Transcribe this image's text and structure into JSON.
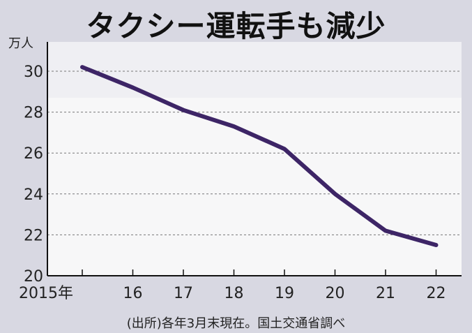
{
  "title": "タクシー運転手も減少",
  "unit_label": "万人",
  "source_note": "(出所)各年3月末現在。国土交通省調べ",
  "colors": {
    "line": "#3d2566",
    "plot_bg": "#f7f7f8",
    "frame_bg": "#d8d8e2",
    "grid": "#777777"
  },
  "chart_data": {
    "type": "line",
    "title": "タクシー運転手も減少",
    "xlabel": "",
    "ylabel": "万人",
    "categories": [
      "2015年",
      "16",
      "17",
      "18",
      "19",
      "20",
      "21",
      "22"
    ],
    "series": [
      {
        "values": [
          30.2,
          29.2,
          28.1,
          27.3,
          26.2,
          24.0,
          22.2,
          21.5
        ]
      }
    ],
    "ylim": [
      20,
      30
    ],
    "yticks": [
      "20",
      "22",
      "24",
      "26",
      "28",
      "30"
    ],
    "grid": true
  }
}
